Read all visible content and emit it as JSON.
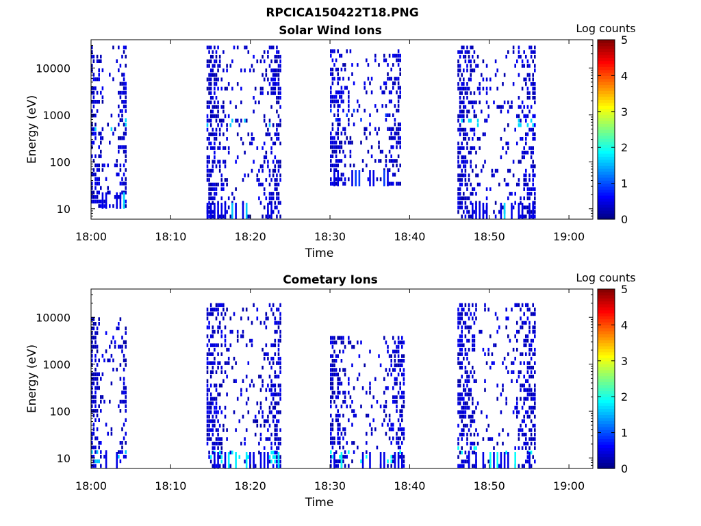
{
  "figure_title": "RPCICA150422T18.PNG",
  "colors": {
    "colormap": [
      "#00007f",
      "#0000ff",
      "#007fff",
      "#00ffff",
      "#7fff7f",
      "#ffff00",
      "#ff7f00",
      "#ff0000",
      "#7f0000"
    ],
    "frame": "#000000",
    "background": "#ffffff"
  },
  "chart_data": [
    {
      "type": "heatmap",
      "title": "Solar Wind Ions",
      "xlabel": "Time",
      "ylabel": "Energy (eV)",
      "x_scale": "time",
      "y_scale": "log",
      "xlim": [
        "18:00",
        "19:03"
      ],
      "ylim": [
        6,
        40000
      ],
      "xticks": [
        "18:00",
        "18:10",
        "18:20",
        "18:30",
        "18:40",
        "18:50",
        "19:00"
      ],
      "yticks": [
        "10",
        "100",
        "1000",
        "10000"
      ],
      "colorbar": {
        "label": "Log counts",
        "range": [
          0,
          5
        ],
        "ticks": [
          "0",
          "1",
          "2",
          "3",
          "4",
          "5"
        ]
      },
      "bursts": [
        {
          "start": "18:00",
          "end": "18:04.5",
          "emin": 10,
          "emax": 30000,
          "level": 0.5,
          "peak_energy": 600,
          "peak_level": 1.7
        },
        {
          "start": "18:14.5",
          "end": "18:24",
          "emin": 6,
          "emax": 30000,
          "level": 0.5,
          "peak_energy": 700,
          "peak_level": 1.6
        },
        {
          "start": "18:30",
          "end": "18:39",
          "emin": 30,
          "emax": 25000,
          "level": 0.5,
          "peak_energy": 1000,
          "peak_level": 0.9
        },
        {
          "start": "18:46",
          "end": "18:56",
          "emin": 6,
          "emax": 30000,
          "level": 0.5,
          "peak_energy": 700,
          "peak_level": 1.7
        }
      ]
    },
    {
      "type": "heatmap",
      "title": "Cometary Ions",
      "xlabel": "Time",
      "ylabel": "Energy (eV)",
      "x_scale": "time",
      "y_scale": "log",
      "xlim": [
        "18:00",
        "19:03"
      ],
      "ylim": [
        6,
        40000
      ],
      "xticks": [
        "18:00",
        "18:10",
        "18:20",
        "18:30",
        "18:40",
        "18:50",
        "19:00"
      ],
      "yticks": [
        "10",
        "100",
        "1000",
        "10000"
      ],
      "colorbar": {
        "label": "Log counts",
        "range": [
          0,
          5
        ],
        "ticks": [
          "0",
          "1",
          "2",
          "3",
          "4",
          "5"
        ]
      },
      "bursts": [
        {
          "start": "18:00",
          "end": "18:04.5",
          "emin": 6,
          "emax": 10000,
          "level": 0.5,
          "peak_energy": 10,
          "peak_level": 1.6
        },
        {
          "start": "18:14.5",
          "end": "18:24",
          "emin": 6,
          "emax": 20000,
          "level": 0.5,
          "peak_energy": 10,
          "peak_level": 1.8
        },
        {
          "start": "18:30",
          "end": "18:39.5",
          "emin": 6,
          "emax": 4000,
          "level": 0.5,
          "peak_energy": 10,
          "peak_level": 1.9
        },
        {
          "start": "18:46",
          "end": "18:56",
          "emin": 6,
          "emax": 20000,
          "level": 0.5,
          "peak_energy": 15,
          "peak_level": 1.9
        }
      ]
    }
  ]
}
